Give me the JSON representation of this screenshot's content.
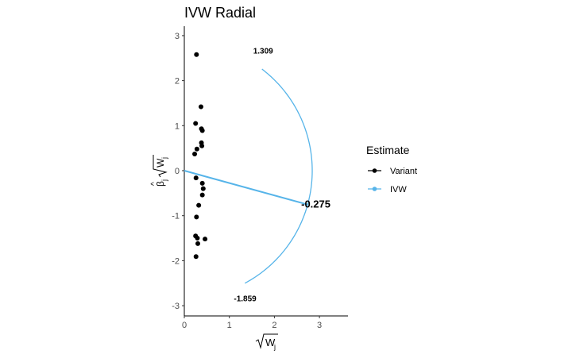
{
  "chart_data": {
    "type": "scatter",
    "title": "IVW Radial",
    "xlabel": "√W_j",
    "ylabel": "β̂_j √W_j",
    "xlim": [
      0,
      3.65
    ],
    "ylim": [
      -3.25,
      3.3
    ],
    "x_ticks": [
      0,
      1,
      2,
      3
    ],
    "y_ticks": [
      -3,
      -2,
      -1,
      0,
      1,
      2,
      3
    ],
    "series": [
      {
        "name": "Variant",
        "color": "#000000",
        "points": [
          {
            "x": 0.27,
            "y": 2.58
          },
          {
            "x": 0.37,
            "y": 1.42
          },
          {
            "x": 0.25,
            "y": 1.05
          },
          {
            "x": 0.38,
            "y": 0.93
          },
          {
            "x": 0.4,
            "y": 0.89
          },
          {
            "x": 0.38,
            "y": 0.62
          },
          {
            "x": 0.39,
            "y": 0.55
          },
          {
            "x": 0.28,
            "y": 0.48
          },
          {
            "x": 0.23,
            "y": 0.37
          },
          {
            "x": 0.26,
            "y": -0.16
          },
          {
            "x": 0.4,
            "y": -0.28
          },
          {
            "x": 0.42,
            "y": -0.4
          },
          {
            "x": 0.4,
            "y": -0.54
          },
          {
            "x": 0.32,
            "y": -0.77
          },
          {
            "x": 0.27,
            "y": -1.03
          },
          {
            "x": 0.25,
            "y": -1.45
          },
          {
            "x": 0.29,
            "y": -1.5
          },
          {
            "x": 0.46,
            "y": -1.52
          },
          {
            "x": 0.3,
            "y": -1.62
          },
          {
            "x": 0.26,
            "y": -1.91
          }
        ]
      },
      {
        "name": "IVW",
        "color": "#56B4E9",
        "slope": -0.275,
        "arc": {
          "radius": 2.84,
          "from_slope": -1.859,
          "to_slope": 1.309
        }
      }
    ],
    "annotations": [
      {
        "text": "1.309",
        "x": 1.75,
        "y": 2.6
      },
      {
        "text": "-0.275",
        "x": 2.92,
        "y": -0.82
      },
      {
        "text": "-1.859",
        "x": 1.35,
        "y": -2.9
      }
    ],
    "legend": {
      "title": "Estimate",
      "position": "right",
      "items": [
        {
          "label": "Variant",
          "color": "#000000"
        },
        {
          "label": "IVW",
          "color": "#56B4E9"
        }
      ]
    },
    "grid": false
  }
}
